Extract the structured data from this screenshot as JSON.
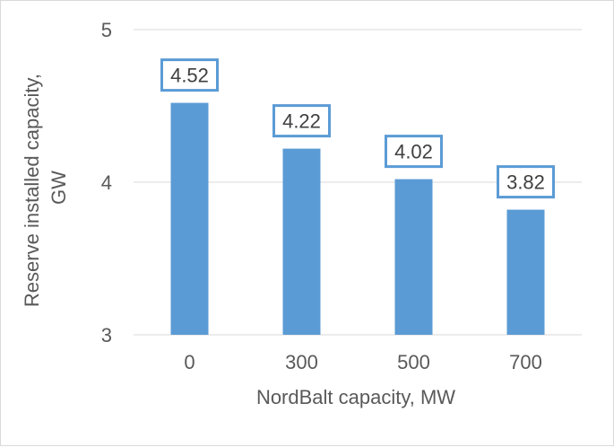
{
  "chart_data": {
    "type": "bar",
    "categories": [
      "0",
      "300",
      "500",
      "700"
    ],
    "values": [
      4.52,
      4.22,
      4.02,
      3.82
    ],
    "data_labels": [
      "4.52",
      "4.22",
      "4.02",
      "3.82"
    ],
    "title": "",
    "xlabel": "NordBalt capacity, MW",
    "ylabel_lines": [
      "Reserve installed capacity,",
      "GW"
    ],
    "ylim": [
      3,
      5
    ],
    "yticks": [
      3,
      4,
      5
    ],
    "ytick_labels": [
      "3",
      "4",
      "5"
    ],
    "grid": true,
    "legend": "none",
    "colors": {
      "bar": "#5b9bd5",
      "label_border": "#5b9bd5",
      "grid": "#d9d9d9",
      "text": "#595959"
    }
  }
}
